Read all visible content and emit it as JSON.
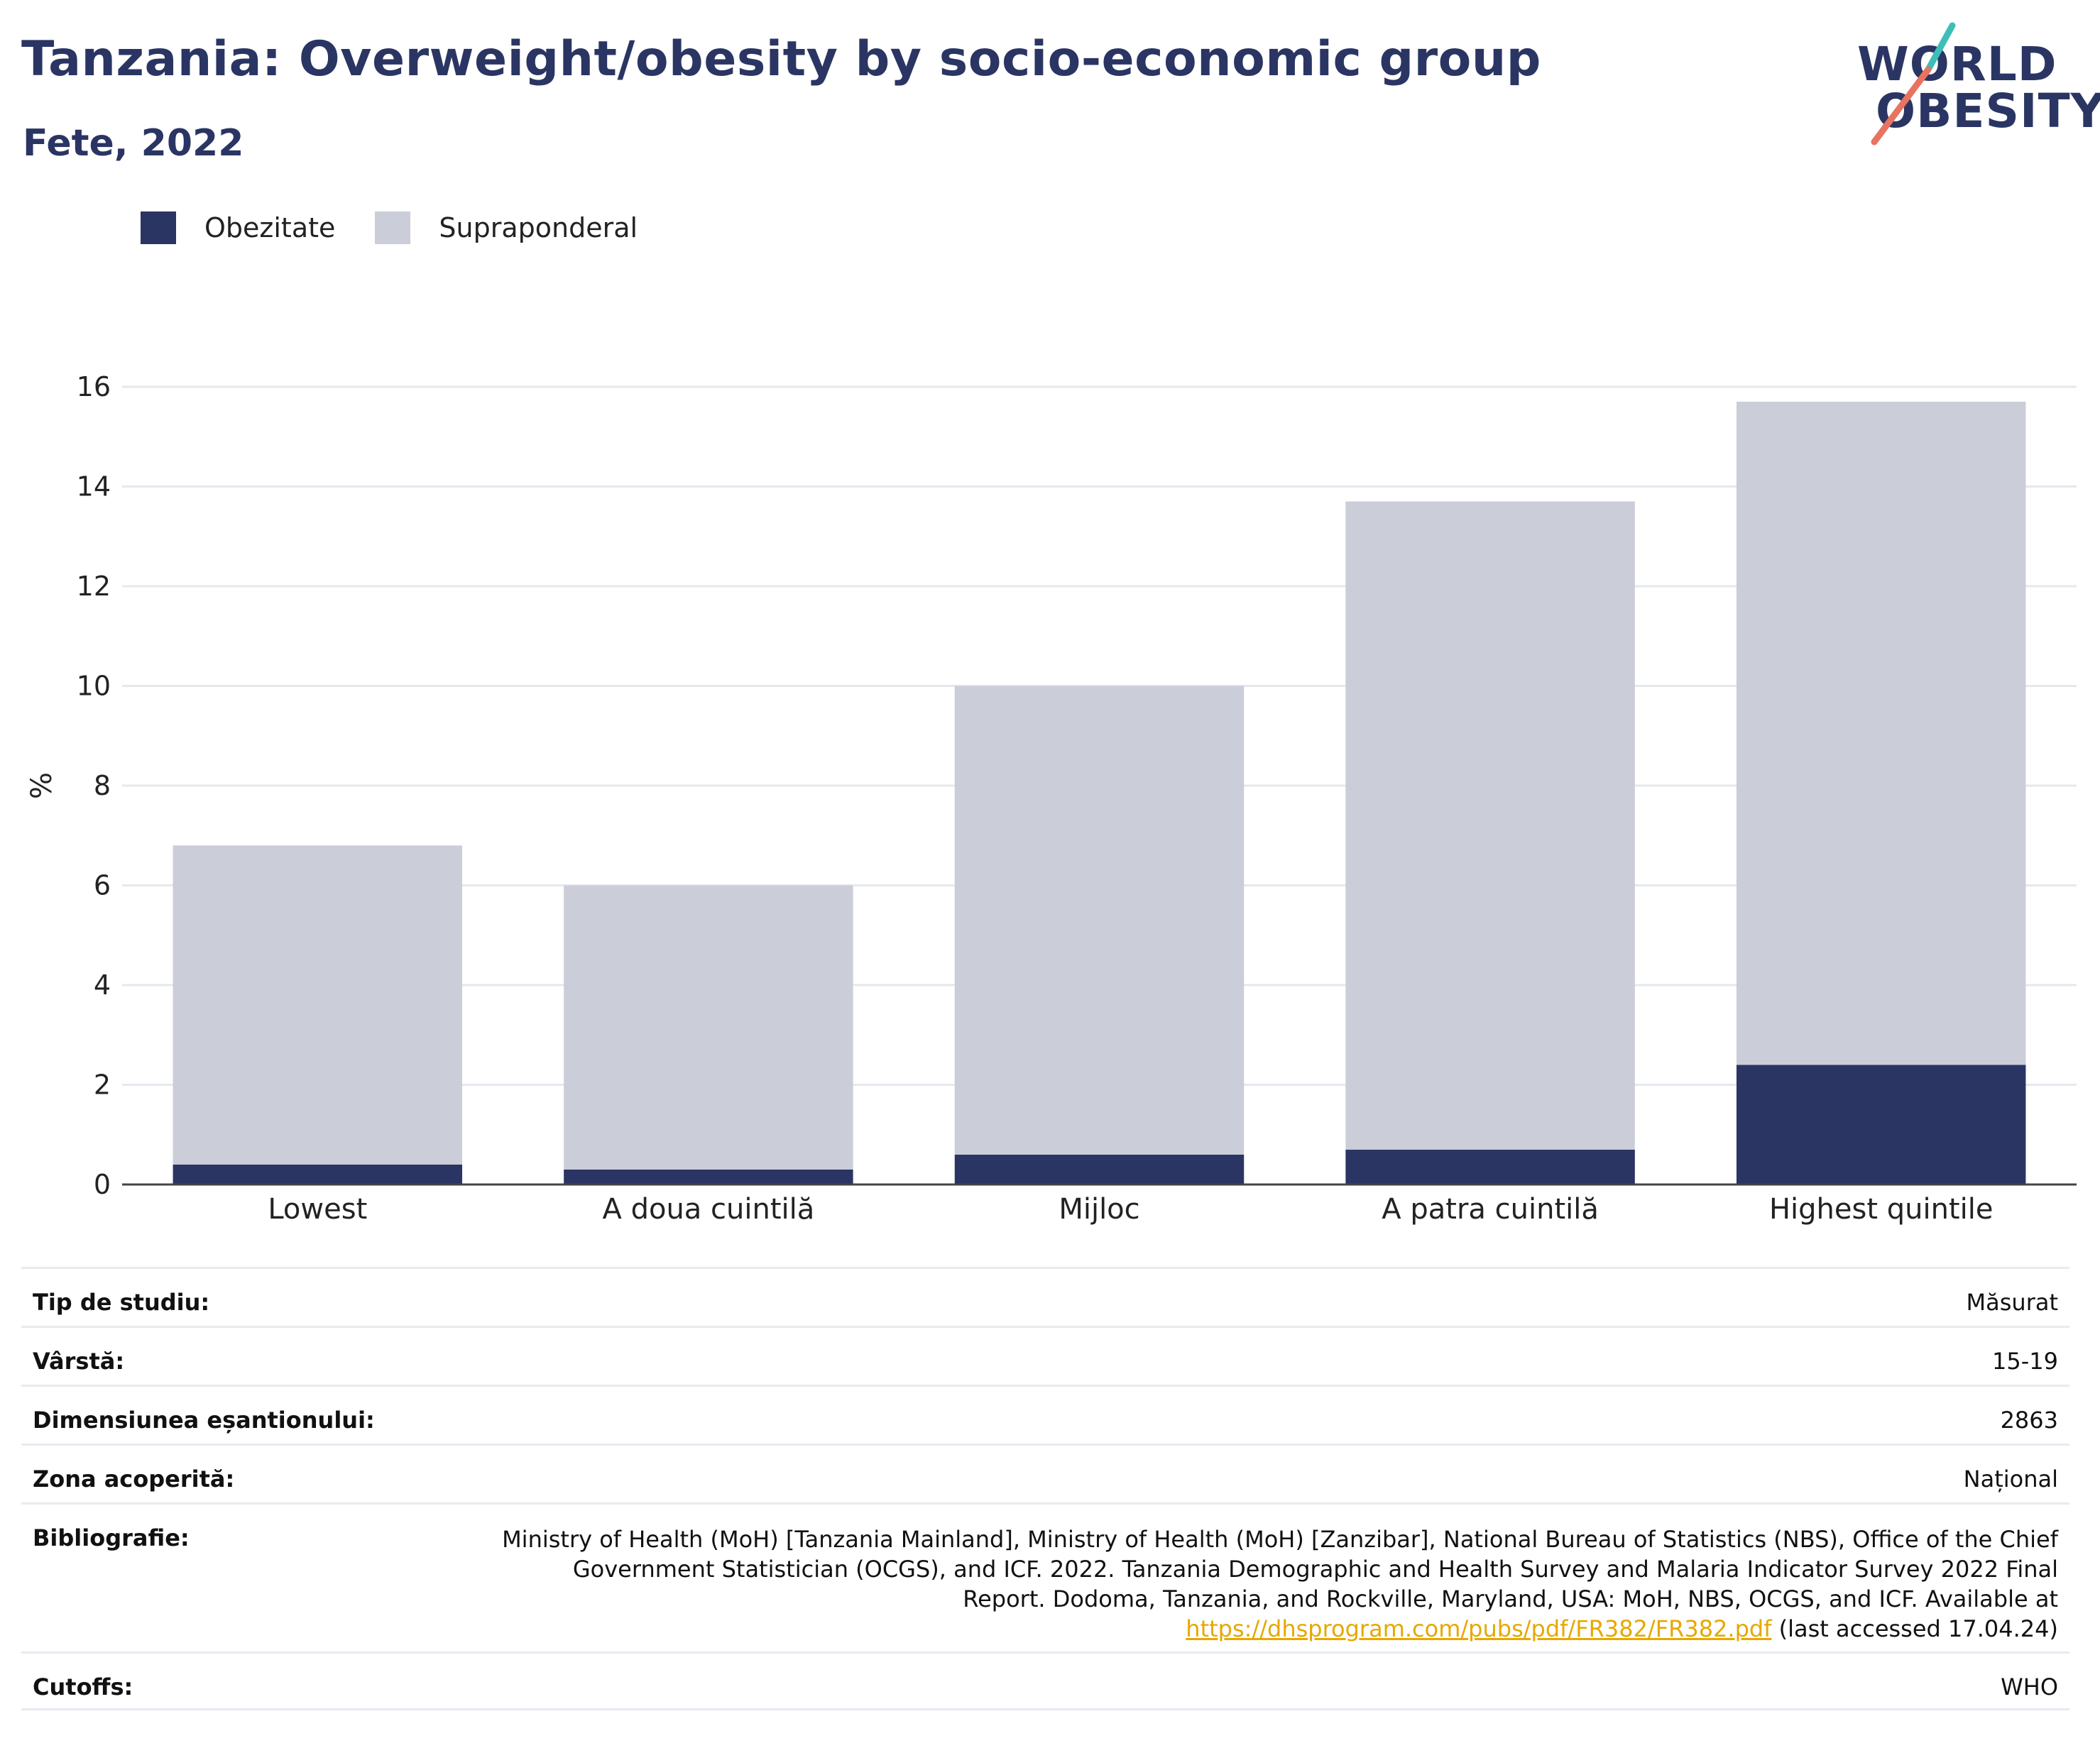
{
  "header": {
    "title": "Tanzania: Overweight/obesity by socio-economic group",
    "subtitle": "Fete, 2022"
  },
  "logo": {
    "line1": "WORLD",
    "line2": "OBESITY",
    "colors": {
      "teal": "#3dbfb8",
      "coral": "#e8735f",
      "navy": "#2a3563"
    }
  },
  "legend": [
    {
      "label": "Obezitate",
      "color": "#2a3563"
    },
    {
      "label": "Supraponderal",
      "color": "#cbcdd8"
    }
  ],
  "chart_data": {
    "type": "bar",
    "stacked": true,
    "categories": [
      "Lowest",
      "A doua cuintilă",
      "Mijloc",
      "A patra cuintilă",
      "Highest quintile"
    ],
    "series": [
      {
        "name": "Obezitate",
        "color": "#2a3563",
        "values": [
          0.4,
          0.3,
          0.6,
          0.7,
          2.4
        ]
      },
      {
        "name": "Supraponderal",
        "color": "#cbcdd8",
        "values": [
          6.4,
          5.7,
          9.4,
          13.0,
          13.3
        ]
      }
    ],
    "totals": [
      6.8,
      6.0,
      10.0,
      13.7,
      15.7
    ],
    "ylabel": "%",
    "ylim": [
      0,
      16
    ],
    "yticks": [
      0,
      2,
      4,
      6,
      8,
      10,
      12,
      14,
      16
    ],
    "grid": true,
    "legend_position": "top-left"
  },
  "meta": {
    "study_type": {
      "key": "Tip de studiu:",
      "value": "Măsurat"
    },
    "age": {
      "key": "Vârstă:",
      "value": "15-19"
    },
    "sample_size": {
      "key": "Dimensiunea eșantionului:",
      "value": "2863"
    },
    "area": {
      "key": "Zona acoperită:",
      "value": "Național"
    },
    "bibliography": {
      "key": "Bibliografie:",
      "text": "Ministry of Health (MoH) [Tanzania Mainland], Ministry of Health (MoH) [Zanzibar], National Bureau of Statistics (NBS), Office of the Chief Government Statistician (OCGS), and ICF. 2022. Tanzania Demographic and Health Survey and Malaria Indicator Survey 2022 Final Report. Dodoma, Tanzania, and Rockville, Maryland, USA: MoH, NBS, OCGS, and ICF. Available at",
      "link": "https://dhsprogram.com/pubs/pdf/FR382/FR382.pdf",
      "suffix": " (last accessed 17.04.24)"
    },
    "cutoffs": {
      "key": "Cutoffs:",
      "value": "WHO"
    }
  }
}
